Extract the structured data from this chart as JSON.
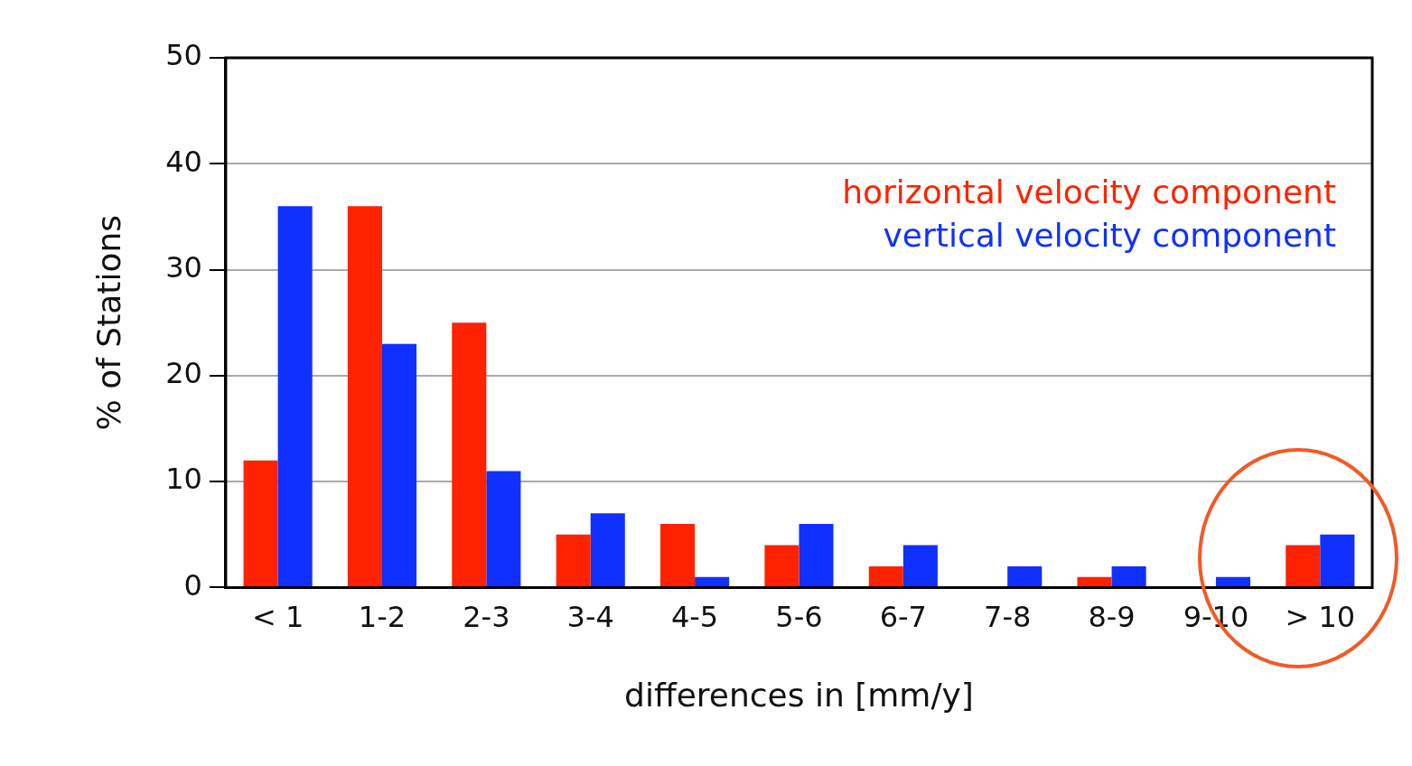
{
  "chart_data": {
    "type": "bar",
    "xlabel": "differences in [mm/y]",
    "ylabel": "% of Stations",
    "categories": [
      "< 1",
      "1-2",
      "2-3",
      "3-4",
      "4-5",
      "5-6",
      "6-7",
      "7-8",
      "8-9",
      "9-10",
      "> 10"
    ],
    "series": [
      {
        "name": "horizontal velocity component",
        "color": "#ff2200",
        "values": [
          12,
          36,
          25,
          5,
          6,
          4,
          2,
          0,
          1,
          0,
          4
        ]
      },
      {
        "name": "vertical velocity component",
        "color": "#1030ff",
        "values": [
          36,
          23,
          11,
          7,
          1,
          6,
          4,
          2,
          2,
          1,
          5
        ]
      }
    ],
    "ylim": [
      0,
      50
    ],
    "yticks": [
      0,
      10,
      20,
      30,
      40,
      50
    ],
    "grid": "y",
    "legend": "top right"
  }
}
